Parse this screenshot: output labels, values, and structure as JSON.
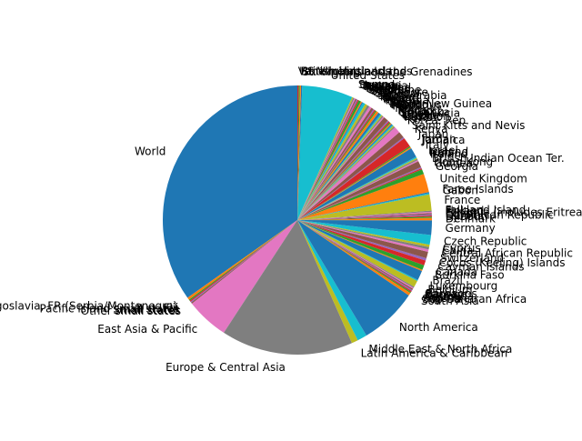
{
  "chart_data": {
    "type": "pie",
    "title": "",
    "legend": "none",
    "palette": [
      "#1f77b4",
      "#ff7f0e",
      "#2ca02c",
      "#d62728",
      "#9467bd",
      "#8c564b",
      "#e377c2",
      "#7f7f7f",
      "#bcbd22",
      "#17becf"
    ],
    "slices": [
      {
        "label": "World",
        "value": 36.0
      },
      {
        "label": "Yugoslavia, FR (Serbia/Montenegro)",
        "value": 0.3
      },
      {
        "label": "Fiji",
        "value": 0.15
      },
      {
        "label": "Pacific island small states",
        "value": 0.15
      },
      {
        "label": "Small states",
        "value": 0.15
      },
      {
        "label": "Other small states",
        "value": 0.15
      },
      {
        "label": "East Asia & Pacific",
        "value": 5.3
      },
      {
        "label": "Europe & Central Asia",
        "value": 16.4
      },
      {
        "label": "Latin America & Caribbean",
        "value": 0.8
      },
      {
        "label": "Middle East & North Africa",
        "value": 1.2
      },
      {
        "label": "North America",
        "value": 7.2
      },
      {
        "label": "South Asia",
        "value": 0.35
      },
      {
        "label": "Sub-Saharan Africa",
        "value": 0.15
      },
      {
        "label": "Algeria",
        "value": 0.15
      },
      {
        "label": "Austria",
        "value": 0.15
      },
      {
        "label": "Bermuda",
        "value": 0.15
      },
      {
        "label": "Bahrain",
        "value": 0.15
      },
      {
        "label": "Barbados",
        "value": 0.15
      },
      {
        "label": "Belgium",
        "value": 0.8
      },
      {
        "label": "Luxembourg",
        "value": 0.15
      },
      {
        "label": "Brazil",
        "value": 1.2
      },
      {
        "label": "Burkina Faso",
        "value": 0.15
      },
      {
        "label": "Canada",
        "value": 0.6
      },
      {
        "label": "Cayman Islands",
        "value": 0.6
      },
      {
        "label": "Cocos (Keeling) Islands",
        "value": 0.3
      },
      {
        "label": "Switzerland",
        "value": 0.8
      },
      {
        "label": "Central African Republic",
        "value": 0.3
      },
      {
        "label": "China",
        "value": 0.3
      },
      {
        "label": "Cyprus",
        "value": 0.3
      },
      {
        "label": "Czech Republic",
        "value": 1.2
      },
      {
        "label": "Germany",
        "value": 1.8
      },
      {
        "label": "Denmark",
        "value": 0.3
      },
      {
        "label": "Djibouti",
        "value": 0.15
      },
      {
        "label": "Dominican Republic",
        "value": 0.15
      },
      {
        "label": "Egypt",
        "value": 0.15
      },
      {
        "label": "Ethiopia (includes Eritrea)",
        "value": 0.15
      },
      {
        "label": "Finland",
        "value": 0.15
      },
      {
        "label": "Falkland Island",
        "value": 0.15
      },
      {
        "label": "France",
        "value": 2.0
      },
      {
        "label": "Gabon",
        "value": 0.15
      },
      {
        "label": "Faroe Islands",
        "value": 0.15
      },
      {
        "label": "United Kingdom",
        "value": 2.3
      },
      {
        "label": "Georgia",
        "value": 0.6
      },
      {
        "label": "Guinea",
        "value": 0.15
      },
      {
        "label": "Hong Kong",
        "value": 0.15
      },
      {
        "label": "British Indian Ocean Ter.",
        "value": 0.8
      },
      {
        "label": "Ireland",
        "value": 0.15
      },
      {
        "label": "Iran",
        "value": 0.15
      },
      {
        "label": "Iceland",
        "value": 0.15
      },
      {
        "label": "Israel",
        "value": 0.15
      },
      {
        "label": "Italy",
        "value": 1.2
      },
      {
        "label": "Jamaica",
        "value": 0.15
      },
      {
        "label": "Jordan",
        "value": 0.15
      },
      {
        "label": "Japan",
        "value": 1.2
      },
      {
        "label": "Kenya",
        "value": 0.15
      },
      {
        "label": "Saint Kitts and Nevis",
        "value": 0.8
      },
      {
        "label": "Korea, Rep.",
        "value": 0.8
      },
      {
        "label": "Kuwait",
        "value": 0.15
      },
      {
        "label": "Lebanon",
        "value": 0.15
      },
      {
        "label": "Liberia",
        "value": 0.15
      },
      {
        "label": "Libya",
        "value": 0.15
      },
      {
        "label": "Saint Lucia",
        "value": 0.15
      },
      {
        "label": "Sri Lanka",
        "value": 0.15
      },
      {
        "label": "Morocco",
        "value": 0.15
      },
      {
        "label": "Macao",
        "value": 0.15
      },
      {
        "label": "Mali",
        "value": 0.6
      },
      {
        "label": "Malta",
        "value": 0.15
      },
      {
        "label": "Mauritius",
        "value": 0.15
      },
      {
        "label": "Mexico",
        "value": 0.15
      },
      {
        "label": "Papua New Guinea",
        "value": 0.15
      },
      {
        "label": "Oman",
        "value": 0.3
      },
      {
        "label": "Panama",
        "value": 0.3
      },
      {
        "label": "Peru",
        "value": 0.15
      },
      {
        "label": "Poland",
        "value": 0.15
      },
      {
        "label": "Qatar",
        "value": 0.15
      },
      {
        "label": "Russia",
        "value": 0.3
      },
      {
        "label": "Saudi Arabia",
        "value": 0.3
      },
      {
        "label": "Senegal",
        "value": 0.3
      },
      {
        "label": "Singapore",
        "value": 0.3
      },
      {
        "label": "Spain",
        "value": 0.3
      },
      {
        "label": "Suriname",
        "value": 0.15
      },
      {
        "label": "Sweden",
        "value": 0.15
      },
      {
        "label": "Syria",
        "value": 0.3
      },
      {
        "label": "Thailand",
        "value": 0.15
      },
      {
        "label": "Tunisia",
        "value": 0.15
      },
      {
        "label": "Turkey",
        "value": 0.15
      },
      {
        "label": "Tanzania",
        "value": 0.15
      },
      {
        "label": "Uganda",
        "value": 0.15
      },
      {
        "label": "Samoa",
        "value": 0.15
      },
      {
        "label": "United States",
        "value": 6.3
      },
      {
        "label": "St. Vincent and the Grenadines",
        "value": 0.15
      },
      {
        "label": "British Virgin Islands",
        "value": 0.15
      },
      {
        "label": "US Virgin Islands",
        "value": 0.15
      },
      {
        "label": "Venezuela",
        "value": 0.15
      }
    ]
  }
}
